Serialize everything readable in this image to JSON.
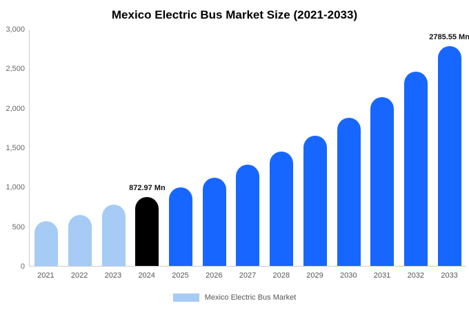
{
  "title": "Mexico Electric Bus Market Size (2021-2033)",
  "legend": {
    "label": "Mexico Electric Bus Market"
  },
  "colors": {
    "background": "#ffffff",
    "axis_line": "#cccccc",
    "tick_text": "#666666",
    "x_label_text": "#555555",
    "annotation_text": "#111111",
    "legend_swatch": "#a6ccf5",
    "historical_bar": "#a6ccf5",
    "base_year_bar": "#000000",
    "forecast_bar": "#1766ff"
  },
  "chart_data": {
    "type": "bar",
    "title": "Mexico Electric Bus Market Size (2021-2033)",
    "unit": "Mn",
    "categories": [
      "2021",
      "2022",
      "2023",
      "2024",
      "2025",
      "2026",
      "2027",
      "2028",
      "2029",
      "2030",
      "2031",
      "2032",
      "2033"
    ],
    "values": [
      565,
      645,
      775,
      872.97,
      990,
      1120,
      1280,
      1445,
      1650,
      1875,
      2135,
      2455,
      2785.55
    ],
    "roles": [
      "historical",
      "historical",
      "historical",
      "base",
      "forecast",
      "forecast",
      "forecast",
      "forecast",
      "forecast",
      "forecast",
      "forecast",
      "forecast",
      "forecast"
    ],
    "role_colors": {
      "historical": "#a6ccf5",
      "base": "#000000",
      "forecast": "#1766ff"
    },
    "annotations": {
      "2024": "872.97 Mn",
      "2033": "2785.55 Mn"
    },
    "xlabel": "",
    "ylabel": "",
    "ylim": [
      0,
      3000
    ],
    "yticks": [
      "3,000",
      "2,500",
      "2,000",
      "1,500",
      "1,000",
      "500",
      "0"
    ],
    "grid": false,
    "legend_entries": [
      "Mexico Electric Bus Market"
    ],
    "legend_position": "bottom"
  }
}
